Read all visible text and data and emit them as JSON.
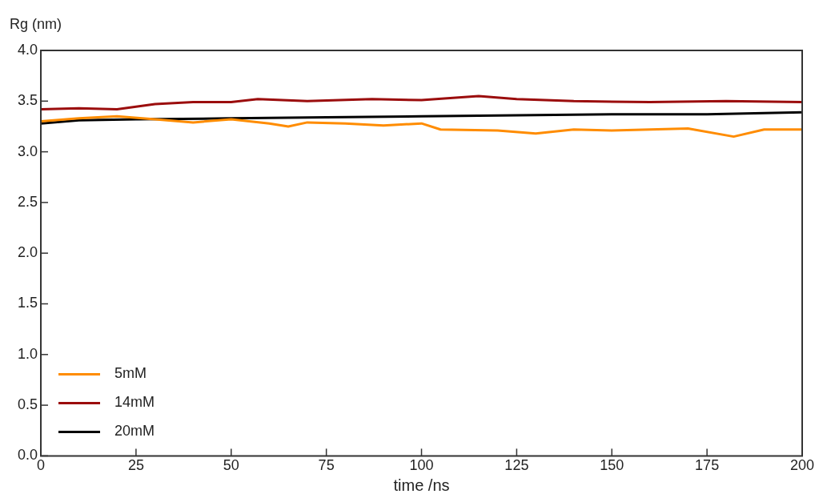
{
  "chart_data": {
    "type": "line",
    "ylabel": "Rg (nm)",
    "xlabel": "time /ns",
    "xlim": [
      0,
      200
    ],
    "xticks": [
      0,
      25,
      50,
      75,
      100,
      125,
      150,
      175,
      200
    ],
    "ylim": [
      0,
      4
    ],
    "yticks": [
      {
        "value": 0,
        "label": "0.0"
      },
      0.5,
      {
        "value": 1,
        "label": "1.0"
      },
      1.5,
      {
        "value": 2,
        "label": "2.0"
      },
      2.5,
      {
        "value": 3,
        "label": "3.0"
      },
      3.5,
      {
        "value": 4,
        "label": "4.0"
      }
    ],
    "grid": false,
    "legend": "bottom left",
    "marker": "none",
    "line_style": "solid",
    "series": [
      {
        "name": "5mM",
        "color": "#ff8c00",
        "x": [
          0,
          10,
          20,
          30,
          40,
          50,
          60,
          65,
          70,
          80,
          90,
          100,
          105,
          120,
          130,
          140,
          150,
          160,
          170,
          182,
          190,
          200
        ],
        "values": [
          3.3,
          3.33,
          3.35,
          3.32,
          3.29,
          3.32,
          3.28,
          3.25,
          3.29,
          3.28,
          3.26,
          3.28,
          3.22,
          3.21,
          3.18,
          3.22,
          3.21,
          3.22,
          3.23,
          3.15,
          3.22,
          3.22
        ]
      },
      {
        "name": "14mM",
        "color": "#9b0d0d",
        "x": [
          0,
          10,
          20,
          30,
          40,
          50,
          57,
          70,
          87,
          100,
          115,
          125,
          140,
          160,
          180,
          200
        ],
        "values": [
          3.42,
          3.43,
          3.42,
          3.47,
          3.49,
          3.49,
          3.52,
          3.5,
          3.52,
          3.51,
          3.55,
          3.52,
          3.5,
          3.49,
          3.5,
          3.49
        ]
      },
      {
        "name": "20mM",
        "color": "#000000",
        "x": [
          0,
          10,
          25,
          50,
          75,
          100,
          125,
          150,
          175,
          200
        ],
        "values": [
          3.28,
          3.31,
          3.32,
          3.33,
          3.34,
          3.35,
          3.36,
          3.37,
          3.37,
          3.39
        ]
      }
    ]
  }
}
